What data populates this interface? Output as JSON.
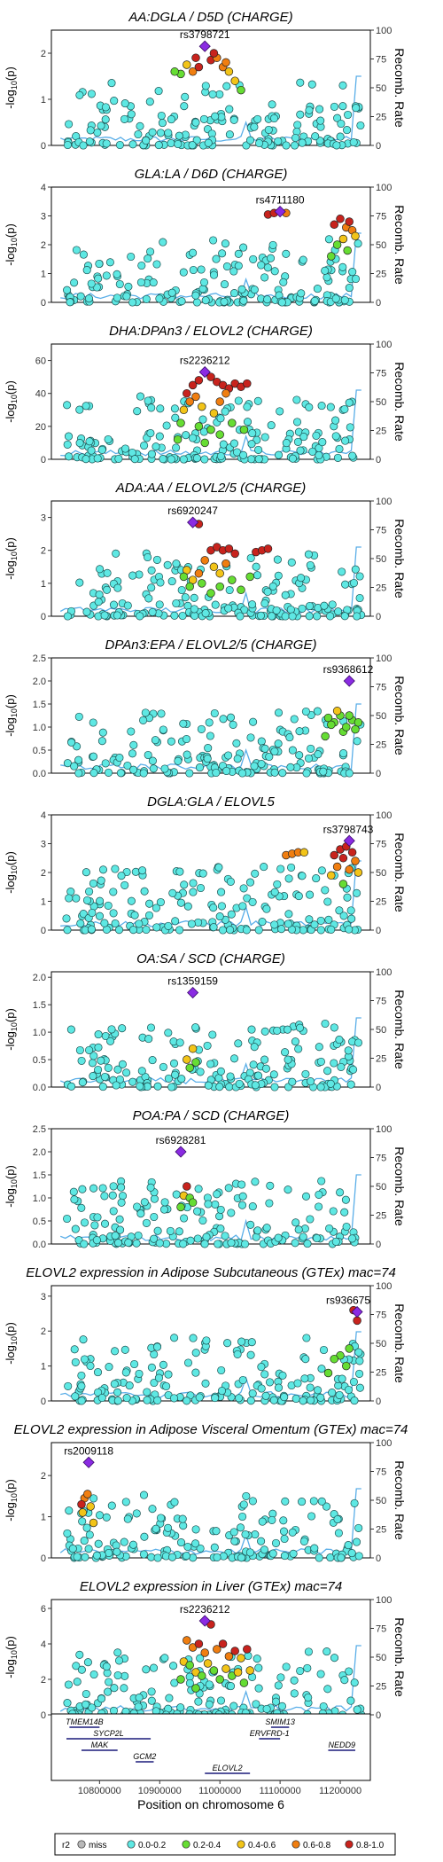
{
  "figure": {
    "x_label": "Position on chromosome 6",
    "x_ticks": [
      10800000,
      10900000,
      11000000,
      11100000,
      11200000
    ],
    "x_range": [
      10720000,
      11250000
    ]
  },
  "legend": {
    "title": "r2",
    "items": [
      {
        "label": "miss",
        "color": "#b8b8b8"
      },
      {
        "label": "0.0-0.2",
        "color": "#5ee8e3"
      },
      {
        "label": "0.2-0.4",
        "color": "#66dd33"
      },
      {
        "label": "0.4-0.6",
        "color": "#f2c418"
      },
      {
        "label": "0.6-0.8",
        "color": "#f07e10"
      },
      {
        "label": "0.8-1.0",
        "color": "#c8231d"
      }
    ]
  },
  "genes": [
    {
      "name": "TMEM14B",
      "start": 10750000,
      "end": 10800000,
      "row": 0
    },
    {
      "name": "SYCP2L",
      "start": 10745000,
      "end": 10885000,
      "row": 1
    },
    {
      "name": "MAK",
      "start": 10770000,
      "end": 10830000,
      "row": 2
    },
    {
      "name": "GCM2",
      "start": 10860000,
      "end": 10890000,
      "row": 3
    },
    {
      "name": "ELOVL2",
      "start": 10975000,
      "end": 11050000,
      "row": 4
    },
    {
      "name": "SMIM13",
      "start": 11085000,
      "end": 11115000,
      "row": 0
    },
    {
      "name": "ERVFRD-1",
      "start": 11065000,
      "end": 11100000,
      "row": 1
    },
    {
      "name": "NEDD9",
      "start": 11180000,
      "end": 11225000,
      "row": 2
    }
  ],
  "chart_data": [
    {
      "type": "scatter",
      "title": "AA:DGLA / D5D (CHARGE)",
      "ylabel": "-log10(p)",
      "y2label": "Recomb. Rate",
      "ylim": [
        0,
        2.5
      ],
      "yticks": [
        0,
        1,
        2
      ],
      "y2ticks": [
        0,
        25,
        50,
        75,
        100
      ],
      "lead": {
        "snp": "rs3798721",
        "x": 10975000,
        "y": 2.15
      },
      "ld_points": [
        [
          10935000,
          1.55,
          2
        ],
        [
          10945000,
          1.75,
          3
        ],
        [
          10955000,
          1.6,
          4
        ],
        [
          10965000,
          1.7,
          5
        ],
        [
          10985000,
          1.85,
          5
        ],
        [
          10995000,
          1.9,
          4
        ],
        [
          11005000,
          1.7,
          4
        ],
        [
          11015000,
          1.6,
          3
        ],
        [
          11025000,
          1.4,
          3
        ],
        [
          11035000,
          1.2,
          2
        ],
        [
          10925000,
          1.6,
          2
        ],
        [
          10960000,
          1.9,
          5
        ],
        [
          10990000,
          2.0,
          5
        ],
        [
          11010000,
          1.8,
          4
        ]
      ]
    },
    {
      "type": "scatter",
      "title": "GLA:LA / D6D (CHARGE)",
      "ylabel": "-log10(p)",
      "y2label": "Recomb. Rate",
      "ylim": [
        0,
        4
      ],
      "yticks": [
        0,
        1,
        2,
        3,
        4
      ],
      "y2ticks": [
        0,
        25,
        50,
        75,
        100
      ],
      "lead": {
        "snp": "rs4711180",
        "x": 11100000,
        "y": 3.15
      },
      "ld_points": [
        [
          11080000,
          3.05,
          5
        ],
        [
          11090000,
          3.1,
          5
        ],
        [
          11110000,
          3.1,
          4
        ],
        [
          11190000,
          2.7,
          5
        ],
        [
          11200000,
          2.9,
          5
        ],
        [
          11210000,
          2.6,
          4
        ],
        [
          11215000,
          2.8,
          5
        ],
        [
          11220000,
          2.5,
          4
        ],
        [
          11205000,
          2.2,
          3
        ],
        [
          11195000,
          2.0,
          2
        ],
        [
          11225000,
          2.3,
          3
        ],
        [
          11185000,
          1.6,
          2
        ],
        [
          11212000,
          1.8,
          2
        ]
      ]
    },
    {
      "type": "scatter",
      "title": "DHA:DPAn3 / ELOVL2 (CHARGE)",
      "ylabel": "-log10(p)",
      "y2label": "Recomb. Rate",
      "ylim": [
        0,
        70
      ],
      "yticks": [
        0,
        20,
        40,
        60
      ],
      "y2ticks": [
        0,
        25,
        50,
        75,
        100
      ],
      "lead": {
        "snp": "rs2236212",
        "x": 10975000,
        "y": 53
      },
      "ld_points": [
        [
          10945000,
          40,
          5
        ],
        [
          10955000,
          45,
          5
        ],
        [
          10965000,
          48,
          5
        ],
        [
          10985000,
          50,
          5
        ],
        [
          10995000,
          47,
          5
        ],
        [
          11005000,
          45,
          5
        ],
        [
          11015000,
          43,
          5
        ],
        [
          11025000,
          46,
          5
        ],
        [
          11035000,
          44,
          5
        ],
        [
          11045000,
          46,
          5
        ],
        [
          10950000,
          35,
          4
        ],
        [
          10960000,
          38,
          4
        ],
        [
          10940000,
          30,
          3
        ],
        [
          10970000,
          32,
          3
        ],
        [
          10990000,
          28,
          3
        ],
        [
          11000000,
          35,
          4
        ],
        [
          11010000,
          40,
          4
        ],
        [
          10935000,
          22,
          2
        ],
        [
          10965000,
          20,
          2
        ],
        [
          10985000,
          18,
          2
        ],
        [
          11000000,
          15,
          2
        ],
        [
          11020000,
          22,
          2
        ],
        [
          11040000,
          18,
          2
        ],
        [
          10930000,
          12,
          2
        ],
        [
          10975000,
          10,
          2
        ]
      ]
    },
    {
      "type": "scatter",
      "title": "ADA:AA / ELOVL2/5 (CHARGE)",
      "ylabel": "-log10(p)",
      "y2label": "Recomb. Rate",
      "ylim": [
        0,
        3.5
      ],
      "yticks": [
        0,
        1,
        2,
        3
      ],
      "y2ticks": [
        0,
        25,
        50,
        75,
        100
      ],
      "lead": {
        "snp": "rs6920247",
        "x": 10955000,
        "y": 2.85
      },
      "ld_points": [
        [
          10965000,
          2.8,
          5
        ],
        [
          10975000,
          1.7,
          4
        ],
        [
          10985000,
          2.0,
          5
        ],
        [
          10995000,
          2.1,
          5
        ],
        [
          11005000,
          2.0,
          5
        ],
        [
          11015000,
          2.05,
          5
        ],
        [
          11025000,
          1.9,
          5
        ],
        [
          11060000,
          1.95,
          5
        ],
        [
          11070000,
          2.0,
          5
        ],
        [
          11080000,
          2.05,
          5
        ],
        [
          10945000,
          1.4,
          3
        ],
        [
          10955000,
          1.1,
          3
        ],
        [
          10965000,
          1.3,
          4
        ],
        [
          10990000,
          1.5,
          3
        ],
        [
          11000000,
          1.3,
          3
        ],
        [
          11010000,
          1.6,
          4
        ],
        [
          10940000,
          1.2,
          2
        ],
        [
          10950000,
          0.9,
          2
        ],
        [
          10970000,
          1.0,
          2
        ],
        [
          10985000,
          0.7,
          2
        ],
        [
          11000000,
          0.9,
          2
        ],
        [
          11020000,
          1.1,
          2
        ],
        [
          11035000,
          0.8,
          2
        ],
        [
          11050000,
          1.2,
          2
        ]
      ]
    },
    {
      "type": "scatter",
      "title": "DPAn3:EPA / ELOVL2/5 (CHARGE)",
      "ylabel": "-log10(p)",
      "y2label": "Recomb. Rate",
      "ylim": [
        0,
        2.5
      ],
      "yticks": [
        0.0,
        0.5,
        1.0,
        1.5,
        2.0,
        2.5
      ],
      "y2ticks": [
        0,
        25,
        50,
        75,
        100
      ],
      "lead": {
        "snp": "rs9368612",
        "x": 11215000,
        "y": 2.0
      },
      "ld_points": [
        [
          11180000,
          1.2,
          2
        ],
        [
          11190000,
          1.1,
          2
        ],
        [
          11200000,
          1.25,
          2
        ],
        [
          11205000,
          0.9,
          2
        ],
        [
          11210000,
          1.0,
          2
        ],
        [
          11220000,
          1.15,
          2
        ],
        [
          11225000,
          0.95,
          2
        ],
        [
          11195000,
          1.35,
          3
        ],
        [
          11215000,
          1.25,
          2
        ],
        [
          11185000,
          1.05,
          2
        ],
        [
          11230000,
          1.1,
          2
        ],
        [
          11175000,
          0.8,
          2
        ]
      ]
    },
    {
      "type": "scatter",
      "title": "DGLA:GLA / ELOVL5",
      "ylabel": "-log10(p)",
      "y2label": "Recomb. Rate",
      "ylim": [
        0,
        4
      ],
      "yticks": [
        0,
        1,
        2,
        3,
        4
      ],
      "y2ticks": [
        0,
        25,
        50,
        75,
        100
      ],
      "lead": {
        "snp": "rs3798743",
        "x": 11215000,
        "y": 3.1
      },
      "ld_points": [
        [
          11110000,
          2.6,
          4
        ],
        [
          11120000,
          2.65,
          4
        ],
        [
          11130000,
          2.7,
          4
        ],
        [
          11140000,
          2.7,
          3
        ],
        [
          11190000,
          2.6,
          5
        ],
        [
          11200000,
          2.8,
          5
        ],
        [
          11205000,
          2.5,
          5
        ],
        [
          11210000,
          2.9,
          5
        ],
        [
          11220000,
          2.7,
          5
        ],
        [
          11225000,
          2.4,
          4
        ],
        [
          11195000,
          2.2,
          4
        ],
        [
          11215000,
          2.1,
          4
        ],
        [
          11185000,
          1.9,
          3
        ],
        [
          11230000,
          2.0,
          3
        ],
        [
          11205000,
          1.6,
          2
        ]
      ]
    },
    {
      "type": "scatter",
      "title": "OA:SA / SCD (CHARGE)",
      "ylabel": "-log10(p)",
      "y2label": "Recomb. Rate",
      "ylim": [
        0,
        2.1
      ],
      "yticks": [
        0.0,
        0.5,
        1.0,
        1.5,
        2.0
      ],
      "y2ticks": [
        0,
        25,
        50,
        75,
        100
      ],
      "lead": {
        "snp": "rs1359159",
        "x": 10955000,
        "y": 1.72
      },
      "ld_points": [
        [
          10955000,
          0.7,
          3
        ],
        [
          10945000,
          0.5,
          3
        ],
        [
          10960000,
          0.45,
          2
        ],
        [
          10950000,
          0.35,
          2
        ]
      ]
    },
    {
      "type": "scatter",
      "title": "POA:PA / SCD (CHARGE)",
      "ylabel": "-log10(p)",
      "y2label": "Recomb. Rate",
      "ylim": [
        0,
        2.5
      ],
      "yticks": [
        0.0,
        0.5,
        1.0,
        1.5,
        2.0,
        2.5
      ],
      "y2ticks": [
        0,
        25,
        50,
        75,
        100
      ],
      "lead": {
        "snp": "rs6928281",
        "x": 10935000,
        "y": 2.0
      },
      "ld_points": [
        [
          10945000,
          1.25,
          5
        ],
        [
          10940000,
          1.05,
          3
        ],
        [
          10950000,
          1.0,
          2
        ],
        [
          10955000,
          0.9,
          2
        ],
        [
          10935000,
          0.8,
          2
        ]
      ]
    },
    {
      "type": "scatter",
      "title": "ELOVL2 expression in Adipose Subcutaneous (GTEx) mac=74",
      "ylabel": "-log10(p)",
      "y2label": "Recomb. Rate",
      "ylim": [
        0,
        3.3
      ],
      "yticks": [
        0,
        1,
        2,
        3
      ],
      "y2ticks": [
        0,
        25,
        50,
        75,
        100
      ],
      "lead": {
        "snp": "rs936675",
        "x": 11228000,
        "y": 2.55
      },
      "ld_points": [
        [
          11228000,
          2.3,
          5
        ],
        [
          11222000,
          2.6,
          5
        ],
        [
          11215000,
          1.5,
          2
        ],
        [
          11200000,
          1.3,
          2
        ],
        [
          11190000,
          1.2,
          2
        ],
        [
          11210000,
          1.0,
          2
        ],
        [
          11180000,
          0.8,
          2
        ]
      ]
    },
    {
      "type": "scatter",
      "title": "ELOVL2 expression in Adipose Visceral Omentum (GTEx) mac=74",
      "ylabel": "-log10(p)",
      "y2label": "Recomb. Rate",
      "ylim": [
        0,
        2.8
      ],
      "yticks": [
        0,
        1,
        2
      ],
      "y2ticks": [
        0,
        25,
        50,
        75,
        100
      ],
      "lead": {
        "snp": "rs2009118",
        "x": 10782000,
        "y": 2.32
      },
      "ld_points": [
        [
          10775000,
          1.45,
          4
        ],
        [
          10770000,
          1.3,
          5
        ],
        [
          10780000,
          1.55,
          4
        ],
        [
          10785000,
          1.25,
          3
        ],
        [
          10790000,
          0.85,
          3
        ],
        [
          10772000,
          1.1,
          3
        ]
      ]
    },
    {
      "type": "scatter",
      "title": "ELOVL2 expression in Liver (GTEx) mac=74",
      "ylabel": "-log10(p)",
      "y2label": "Recomb. Rate",
      "ylim": [
        0,
        6.5
      ],
      "yticks": [
        0,
        2,
        4,
        6
      ],
      "y2ticks": [
        0,
        25,
        50,
        75,
        100
      ],
      "lead": {
        "snp": "rs2236212",
        "x": 10975000,
        "y": 5.3
      },
      "ld_points": [
        [
          10985000,
          5.1,
          5
        ],
        [
          10945000,
          4.2,
          4
        ],
        [
          10955000,
          3.8,
          4
        ],
        [
          10965000,
          4.0,
          5
        ],
        [
          10975000,
          3.5,
          4
        ],
        [
          10995000,
          3.7,
          4
        ],
        [
          11005000,
          4.0,
          5
        ],
        [
          11015000,
          3.3,
          4
        ],
        [
          11025000,
          3.6,
          5
        ],
        [
          11035000,
          3.2,
          3
        ],
        [
          11045000,
          3.7,
          5
        ],
        [
          10940000,
          3.0,
          3
        ],
        [
          10950000,
          2.8,
          2
        ],
        [
          10960000,
          2.4,
          3
        ],
        [
          10970000,
          2.2,
          2
        ],
        [
          10980000,
          2.9,
          3
        ],
        [
          10990000,
          2.5,
          2
        ],
        [
          11000000,
          2.0,
          2
        ],
        [
          11010000,
          2.6,
          3
        ],
        [
          11020000,
          2.2,
          2
        ],
        [
          11030000,
          2.4,
          3
        ],
        [
          11040000,
          1.8,
          2
        ],
        [
          10935000,
          2.0,
          2
        ],
        [
          11050000,
          2.5,
          3
        ],
        [
          10960000,
          1.5,
          2
        ]
      ]
    }
  ]
}
